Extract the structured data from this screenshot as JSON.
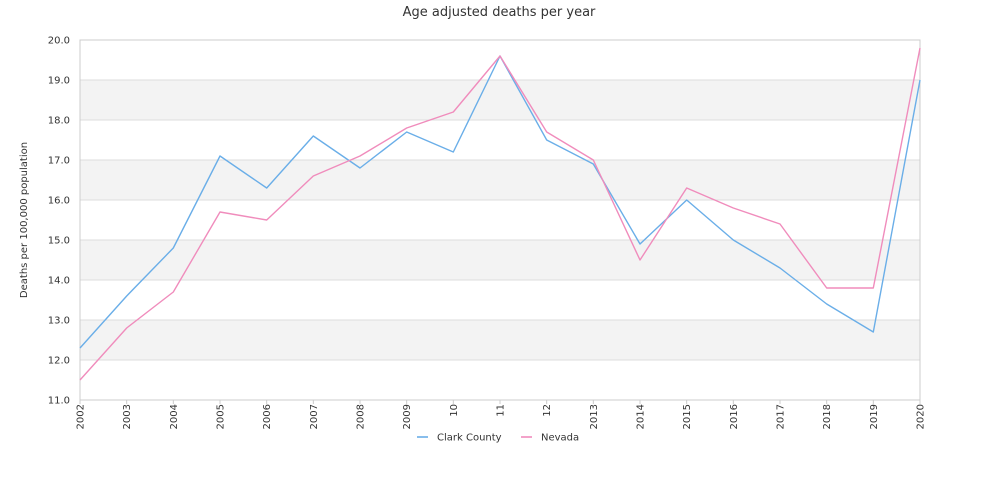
{
  "chart_data": {
    "type": "line",
    "title": "Age adjusted deaths per year",
    "xlabel": "",
    "ylabel": "Deaths per 100,000 population",
    "ylim": [
      11.0,
      20.0
    ],
    "yticks": [
      "11.0",
      "12.0",
      "13.0",
      "14.0",
      "15.0",
      "16.0",
      "17.0",
      "18.0",
      "19.0",
      "20.0"
    ],
    "x": [
      "2002",
      "2003",
      "2004",
      "2005",
      "2006",
      "2007",
      "2008",
      "2009",
      "10",
      "11",
      "12",
      "2013",
      "2014",
      "2015",
      "2016",
      "2017",
      "2018",
      "2019",
      "2020"
    ],
    "grid": true,
    "legend_position": "bottom",
    "series": [
      {
        "name": "Clark County",
        "color": "#6aaee8",
        "values": [
          12.3,
          13.6,
          14.8,
          17.1,
          16.3,
          17.6,
          16.8,
          17.7,
          17.2,
          19.6,
          17.5,
          16.9,
          14.9,
          16.0,
          15.0,
          14.3,
          13.4,
          12.7,
          19.0
        ]
      },
      {
        "name": "Nevada",
        "color": "#f08cbc",
        "values": [
          11.5,
          12.8,
          13.7,
          15.7,
          15.5,
          16.6,
          17.1,
          17.8,
          18.2,
          19.6,
          17.7,
          17.0,
          14.5,
          16.3,
          15.8,
          15.4,
          13.8,
          13.8,
          19.8
        ]
      }
    ]
  }
}
